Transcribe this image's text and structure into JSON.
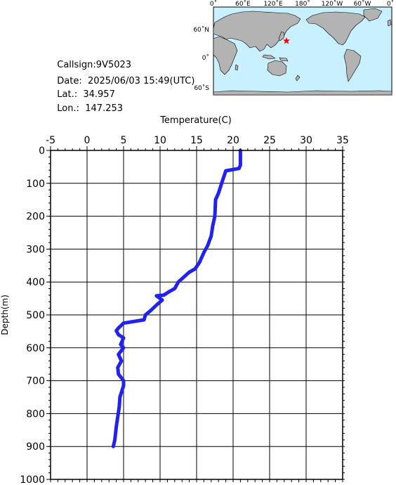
{
  "station": {
    "callsign_label": "Callsign:",
    "callsign": "9V5023",
    "date_label": "Date:",
    "date": "2025/06/03 15:49(UTC)",
    "lat_label": "Lat.:",
    "lat": "34.957",
    "lon_label": "Lon.:",
    "lon": "147.253"
  },
  "map": {
    "lon_ticks": [
      "0˚",
      "60˚E",
      "120˚E",
      "180˚",
      "120˚W",
      "60˚W",
      "0˚"
    ],
    "lat_ticks": [
      "60˚N",
      "0˚",
      "60˚S"
    ],
    "ocean_color": "#c8f0ff",
    "land_color": "#b3b3b3",
    "marker_color": "#ff0000",
    "marker_icon": "star-icon",
    "marker_lat": 34.957,
    "marker_lon": 147.253
  },
  "chart_data": {
    "type": "line",
    "title": "",
    "xlabel": "Temperature(C)",
    "ylabel": "Depth(m)",
    "xlim": [
      -5,
      35
    ],
    "ylim": [
      0,
      1000
    ],
    "y_inverted": true,
    "x_axis_position": "top",
    "x_ticks": [
      "-5",
      "0",
      "5",
      "10",
      "15",
      "20",
      "25",
      "30",
      "35"
    ],
    "y_ticks": [
      "0",
      "100",
      "200",
      "300",
      "400",
      "500",
      "600",
      "700",
      "800",
      "900",
      "1000"
    ],
    "grid": true,
    "line_color": "#2222ee",
    "series": [
      {
        "x": [
          21.0,
          21.0,
          20.8,
          19.0,
          18.5,
          18.0,
          17.6,
          17.5,
          17.2,
          17.0,
          16.5,
          16.0,
          15.4,
          14.8,
          14.0,
          12.5,
          12.0,
          11.2,
          10.5,
          9.5,
          10.0,
          10.3,
          9.5,
          8.8,
          8.0,
          7.8,
          7.0,
          5.0,
          4.3,
          4.0,
          4.3,
          5.0,
          4.6,
          5.0,
          4.3,
          4.7,
          4.2,
          4.3,
          5.0,
          5.0,
          4.5,
          4.4,
          4.2,
          4.0,
          3.9,
          3.8,
          3.6
        ],
        "y": [
          0,
          45,
          55,
          62,
          95,
          130,
          150,
          200,
          230,
          260,
          290,
          310,
          340,
          360,
          370,
          400,
          420,
          430,
          440,
          442,
          450,
          455,
          470,
          485,
          500,
          515,
          518,
          525,
          540,
          548,
          560,
          570,
          590,
          600,
          620,
          640,
          660,
          680,
          700,
          715,
          750,
          780,
          810,
          840,
          860,
          880,
          900
        ]
      }
    ]
  }
}
